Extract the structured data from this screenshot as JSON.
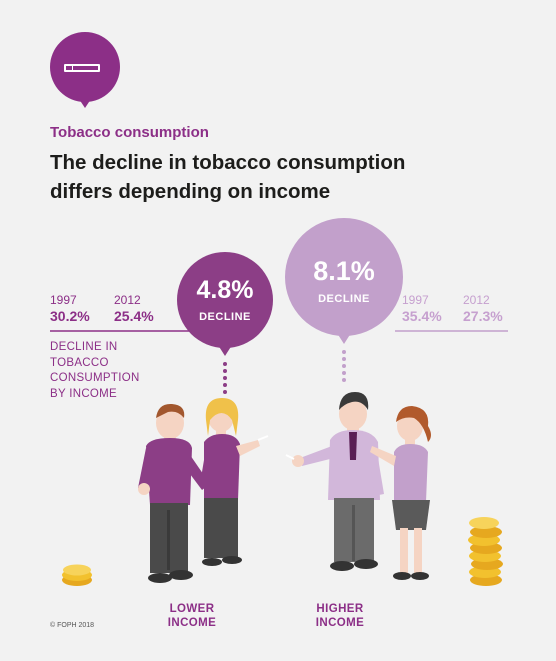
{
  "header": {
    "icon": "cigarette-icon",
    "kicker": "Tobacco consumption",
    "title_line1": "The decline in tobacco consumption",
    "title_line2": "differs depending on income"
  },
  "lower_income": {
    "year_start": "1997",
    "year_end": "2012",
    "value_start": "30.2%",
    "value_end": "25.4%",
    "decline_value": "4.8%",
    "decline_label": "DECLINE",
    "caption_line1": "LOWER",
    "caption_line2": "INCOME"
  },
  "higher_income": {
    "year_start": "1997",
    "year_end": "2012",
    "value_start": "35.4%",
    "value_end": "27.3%",
    "decline_value": "8.1%",
    "decline_label": "DECLINE",
    "caption_line1": "HIGHER",
    "caption_line2": "INCOME"
  },
  "legend": {
    "line1": "DECLINE IN",
    "line2": "TOBACCO",
    "line3": "CONSUMPTION",
    "line4": "BY INCOME"
  },
  "footer": {
    "copyright": "© FOPH 2018"
  },
  "colors": {
    "primary_purple": "#8c2f87",
    "light_purple": "#c2a0cb",
    "background": "#f2f2f2",
    "coin": "#f2c12e"
  }
}
